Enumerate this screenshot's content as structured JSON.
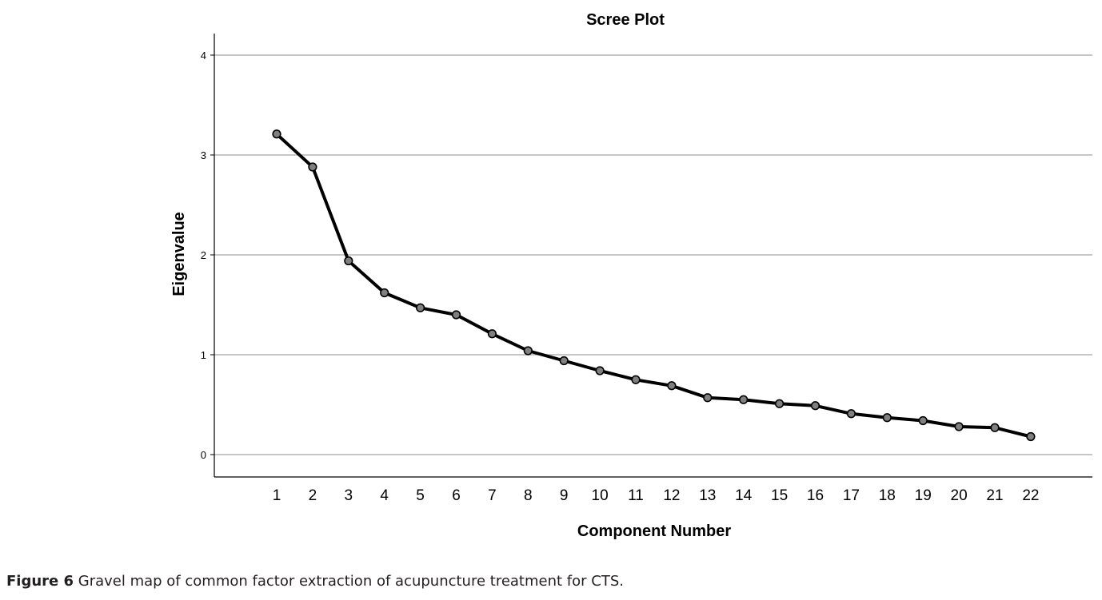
{
  "chart_data": {
    "type": "line",
    "title": "Scree Plot",
    "xlabel": "Component Number",
    "ylabel": "Eigenvalue",
    "x": [
      1,
      2,
      3,
      4,
      5,
      6,
      7,
      8,
      9,
      10,
      11,
      12,
      13,
      14,
      15,
      16,
      17,
      18,
      19,
      20,
      21,
      22
    ],
    "y": [
      3.21,
      2.88,
      1.94,
      1.62,
      1.47,
      1.4,
      1.21,
      1.04,
      0.94,
      0.84,
      0.75,
      0.69,
      0.57,
      0.55,
      0.51,
      0.49,
      0.41,
      0.37,
      0.34,
      0.28,
      0.27,
      0.18
    ],
    "ylim": [
      -0.22,
      4.2
    ],
    "yticks": [
      0,
      1,
      2,
      3,
      4
    ],
    "grid": "horizontal",
    "line_color": "#000000",
    "marker_color": "#808080",
    "gridline_color": "#b4b4b4"
  },
  "caption": {
    "label": "Figure 6",
    "text": " Gravel map of common factor extraction of acupuncture treatment for CTS."
  }
}
